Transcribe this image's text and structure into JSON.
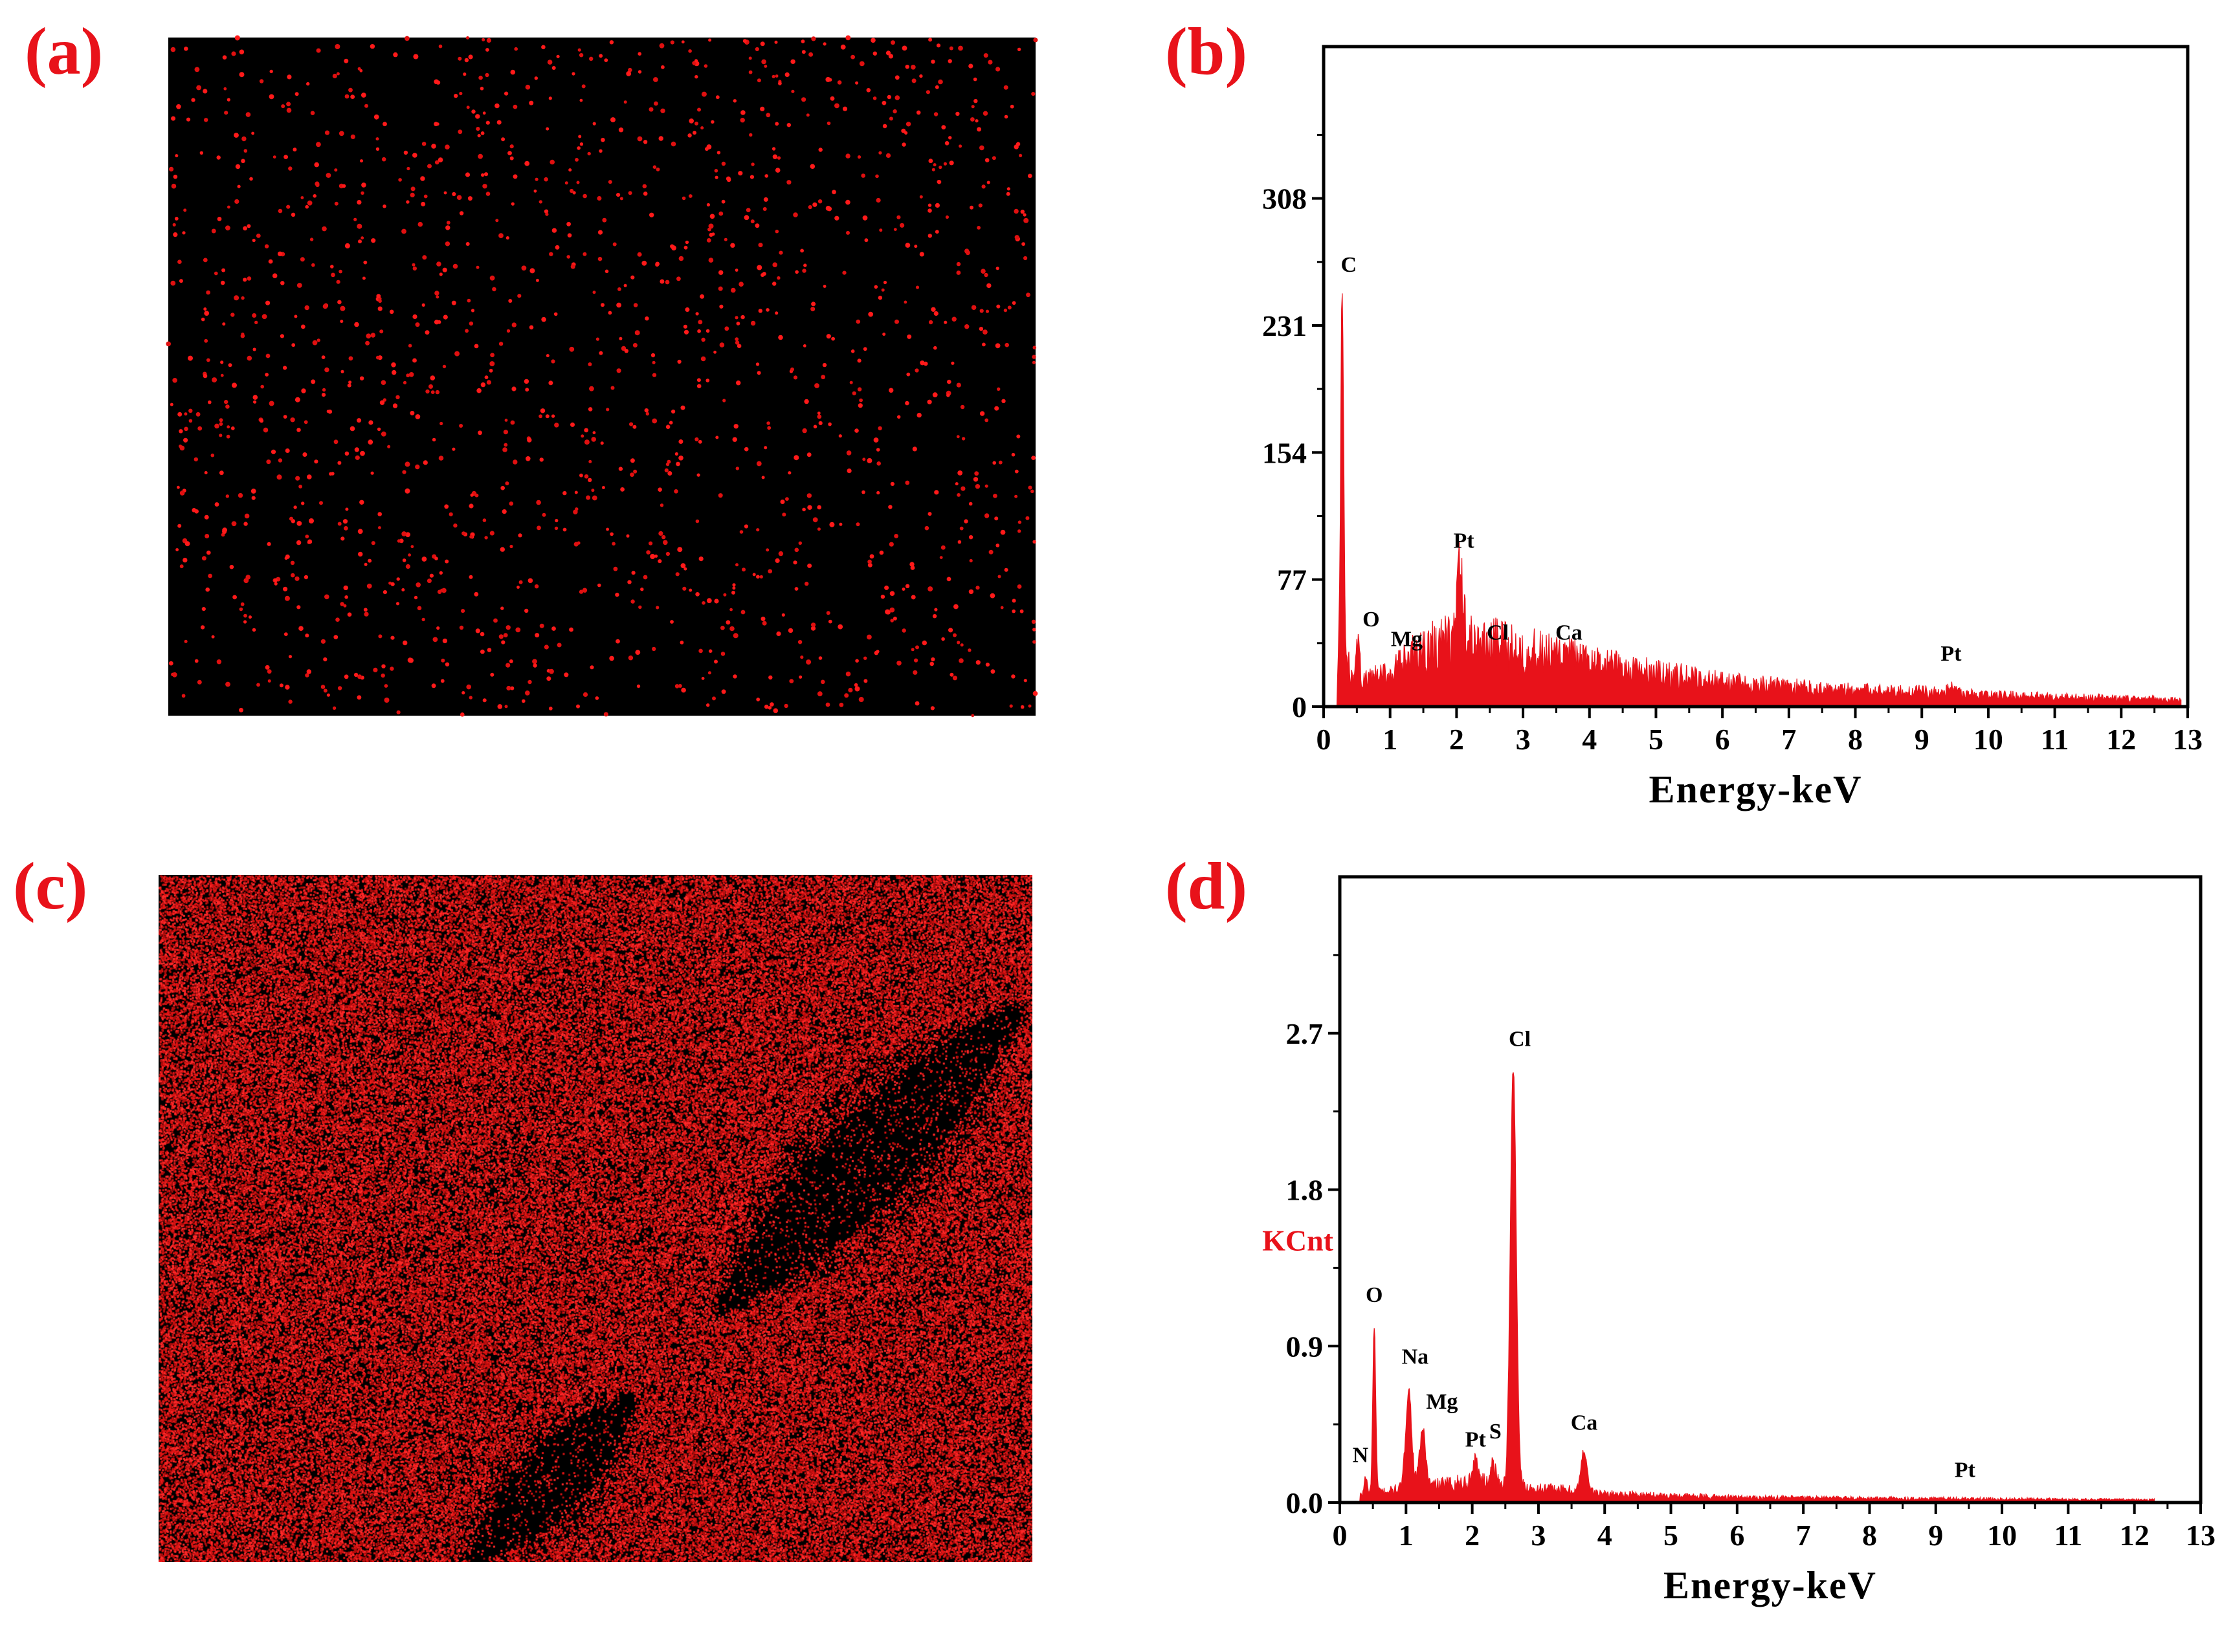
{
  "panels": {
    "a": {
      "label": "(a)"
    },
    "b": {
      "label": "(b)"
    },
    "c": {
      "label": "(c)"
    },
    "d": {
      "label": "(d)"
    }
  },
  "colors": {
    "accent": "#e8121a",
    "map_bg": "#000000",
    "spectrum_fill": "#e8121a"
  },
  "maps": [
    {
      "id": "a",
      "density": "sparse",
      "dot_count": 1500
    },
    {
      "id": "c",
      "density": "dense",
      "dot_count": 150000
    }
  ],
  "chart_data": [
    {
      "id": "b",
      "type": "area",
      "title": "",
      "xlabel": "Energy-keV",
      "ylabel": "",
      "xlim": [
        0,
        13
      ],
      "ylim": [
        0,
        400
      ],
      "xticks": [
        0,
        1,
        2,
        3,
        4,
        5,
        6,
        7,
        8,
        9,
        10,
        11,
        12,
        13
      ],
      "yticks": [
        0,
        77,
        154,
        231,
        308
      ],
      "baseline": [
        [
          0.2,
          30
        ],
        [
          0.6,
          15
        ],
        [
          1.0,
          20
        ],
        [
          1.5,
          35
        ],
        [
          2.0,
          40
        ],
        [
          2.5,
          38
        ],
        [
          3.0,
          34
        ],
        [
          3.5,
          30
        ],
        [
          4.0,
          26
        ],
        [
          5.0,
          20
        ],
        [
          6.0,
          15
        ],
        [
          7.0,
          12
        ],
        [
          8.0,
          10
        ],
        [
          9.0,
          9
        ],
        [
          10.0,
          7
        ],
        [
          11.0,
          6
        ],
        [
          12.0,
          5
        ],
        [
          12.9,
          4
        ]
      ],
      "peaks": [
        {
          "label": "C",
          "energy": 0.28,
          "counts": 251
        },
        {
          "label": "O",
          "energy": 0.52,
          "counts": 40
        },
        {
          "label": "Mg",
          "energy": 1.25,
          "counts": 28
        },
        {
          "label": "Pt",
          "energy": 2.05,
          "counts": 83
        },
        {
          "label": "Cl",
          "energy": 2.62,
          "counts": 32
        },
        {
          "label": "Ca",
          "energy": 3.69,
          "counts": 32
        },
        {
          "label": "Pt",
          "energy": 9.44,
          "counts": 13
        }
      ]
    },
    {
      "id": "d",
      "type": "area",
      "title": "",
      "xlabel": "Energy-keV",
      "ylabel": "KCnt",
      "xlim": [
        0,
        13
      ],
      "ylim": [
        0,
        3.6
      ],
      "xticks": [
        0,
        1,
        2,
        3,
        4,
        5,
        6,
        7,
        8,
        9,
        10,
        11,
        12,
        13
      ],
      "yticks": [
        0.0,
        0.9,
        1.8,
        2.7
      ],
      "ytick_labels": [
        "0.0",
        "0.9",
        "1.8",
        "2.7"
      ],
      "baseline": [
        [
          0.3,
          0.04
        ],
        [
          0.6,
          0.06
        ],
        [
          1.0,
          0.08
        ],
        [
          1.5,
          0.1
        ],
        [
          2.0,
          0.12
        ],
        [
          2.5,
          0.1
        ],
        [
          3.0,
          0.08
        ],
        [
          3.5,
          0.07
        ],
        [
          4.0,
          0.05
        ],
        [
          5.0,
          0.04
        ],
        [
          6.0,
          0.03
        ],
        [
          8.0,
          0.025
        ],
        [
          10.0,
          0.02
        ],
        [
          12.3,
          0.015
        ]
      ],
      "peaks": [
        {
          "label": "N",
          "energy": 0.39,
          "counts": 0.15
        },
        {
          "label": "O",
          "energy": 0.52,
          "counts": 1.02
        },
        {
          "label": "Na",
          "energy": 1.04,
          "counts": 0.65
        },
        {
          "label": "Mg",
          "energy": 1.25,
          "counts": 0.42
        },
        {
          "label": "Pt",
          "energy": 2.05,
          "counts": 0.24
        },
        {
          "label": "S",
          "energy": 2.31,
          "counts": 0.22
        },
        {
          "label": "Cl",
          "energy": 2.62,
          "counts": 2.5
        },
        {
          "label": "Ca",
          "energy": 3.69,
          "counts": 0.3
        },
        {
          "label": "Pt",
          "energy": 9.44,
          "counts": 0.02
        }
      ]
    }
  ]
}
